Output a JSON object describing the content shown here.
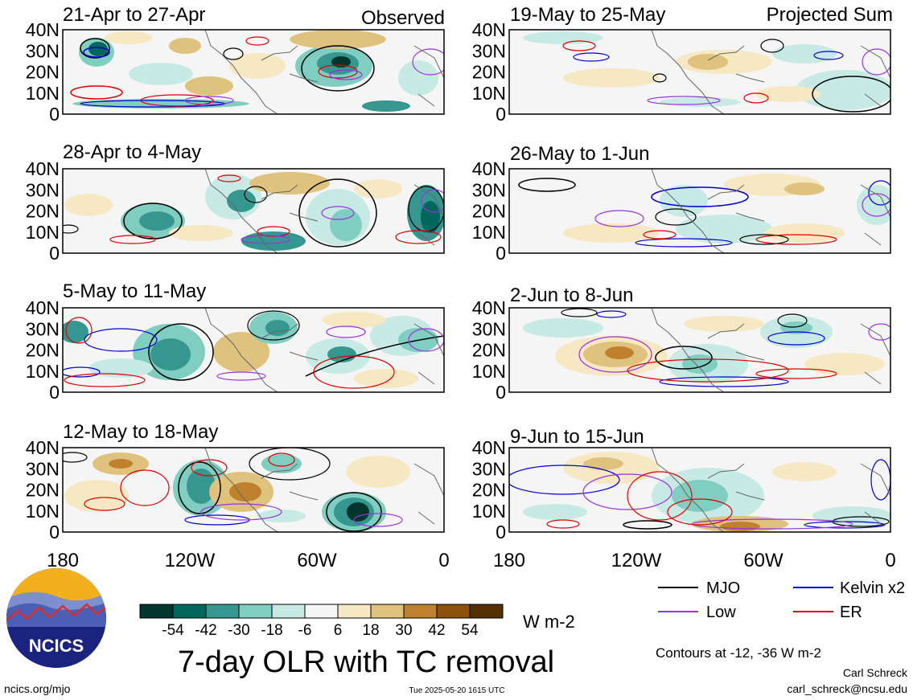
{
  "observed_label": "Observed",
  "projected_label": "Projected Sum",
  "panels": {
    "observed": [
      {
        "title": "21-Apr to 27-Apr"
      },
      {
        "title": "28-Apr to 4-May"
      },
      {
        "title": "5-May to 11-May"
      },
      {
        "title": "12-May to 18-May"
      }
    ],
    "projected": [
      {
        "title": "19-May to 25-May"
      },
      {
        "title": "26-May to 1-Jun"
      },
      {
        "title": "2-Jun to 8-Jun"
      },
      {
        "title": "9-Jun to 15-Jun"
      }
    ]
  },
  "lat_labels": [
    "40N",
    "30N",
    "20N",
    "10N",
    "0"
  ],
  "lon_labels": [
    "180",
    "120W",
    "60W",
    "0"
  ],
  "colorbar": {
    "tick_labels": [
      "-54",
      "-42",
      "-30",
      "-18",
      "-6",
      "6",
      "18",
      "30",
      "42",
      "54"
    ],
    "colors": [
      "#01362e",
      "#01665e",
      "#35978f",
      "#80cdc1",
      "#c7eae5",
      "#f5f5f5",
      "#f6e8c3",
      "#dfc27d",
      "#bf812d",
      "#8c510a",
      "#543005"
    ],
    "units": "W m-2"
  },
  "legend": {
    "items": [
      {
        "label": "MJO",
        "color": "#000000"
      },
      {
        "label": "Kelvin x2",
        "color": "#0000cc"
      },
      {
        "label": "Low",
        "color": "#9933dd"
      },
      {
        "label": "ER",
        "color": "#dd0000"
      }
    ],
    "contour_note": "Contours at -12, -36 W m-2"
  },
  "main_title": "7-day OLR with TC removal",
  "logo_text": "NCICS",
  "footer": {
    "url": "ncics.org/mjo",
    "timestamp": "Tue 2025-05-20 1615 UTC",
    "author": "Carl Schreck",
    "email": "carl_schreck@ncsu.edu"
  }
}
